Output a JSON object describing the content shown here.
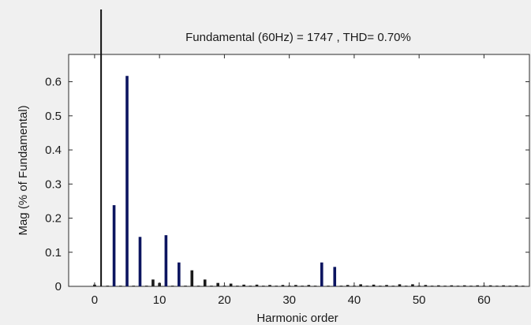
{
  "chart_data": {
    "type": "bar",
    "title": "Fundamental (60Hz) = 1747 , THD= 0.70%",
    "xlabel": "Harmonic order",
    "ylabel": "Mag (% of Fundamental)",
    "xlim": [
      -4,
      67
    ],
    "ylim": [
      0,
      0.68
    ],
    "xticks": [
      0,
      10,
      20,
      30,
      40,
      50,
      60
    ],
    "yticks": [
      0,
      0.1,
      0.2,
      0.3,
      0.4,
      0.5,
      0.6
    ],
    "grid": false,
    "colors": {
      "harmonic_bar": "#0c1560",
      "marker_bar": "#111111",
      "axes_bg": "#ffffff",
      "figure_bg": "#f0f0f0"
    },
    "marker_line": {
      "x": 1
    },
    "x": [
      0,
      1,
      2,
      3,
      4,
      5,
      6,
      7,
      8,
      9,
      10,
      11,
      12,
      13,
      14,
      15,
      16,
      17,
      18,
      19,
      20,
      21,
      22,
      23,
      24,
      25,
      26,
      27,
      28,
      29,
      30,
      31,
      32,
      33,
      34,
      35,
      36,
      37,
      38,
      39,
      40,
      41,
      42,
      43,
      44,
      45,
      46,
      47,
      48,
      49,
      50,
      51,
      52,
      53,
      54,
      55,
      56,
      57,
      58,
      59,
      60,
      61,
      62,
      63,
      64,
      65,
      66
    ],
    "values": [
      0.005,
      0,
      0.002,
      0.238,
      0.002,
      0.617,
      0.002,
      0.145,
      0.002,
      0.02,
      0.01,
      0.15,
      0.002,
      0.07,
      0.002,
      0.047,
      0.002,
      0.02,
      0.002,
      0.01,
      0.002,
      0.008,
      0.002,
      0.005,
      0.002,
      0.005,
      0.002,
      0.004,
      0.002,
      0.004,
      0.002,
      0.004,
      0.002,
      0.004,
      0.002,
      0.07,
      0.002,
      0.057,
      0.002,
      0.004,
      0.002,
      0.006,
      0.002,
      0.005,
      0.002,
      0.004,
      0.002,
      0.006,
      0.002,
      0.006,
      0.002,
      0.004,
      0.002,
      0.003,
      0.002,
      0.003,
      0.002,
      0.003,
      0.002,
      0.003,
      0.002,
      0.003,
      0.002,
      0.003,
      0.002,
      0.003,
      0.002
    ]
  }
}
